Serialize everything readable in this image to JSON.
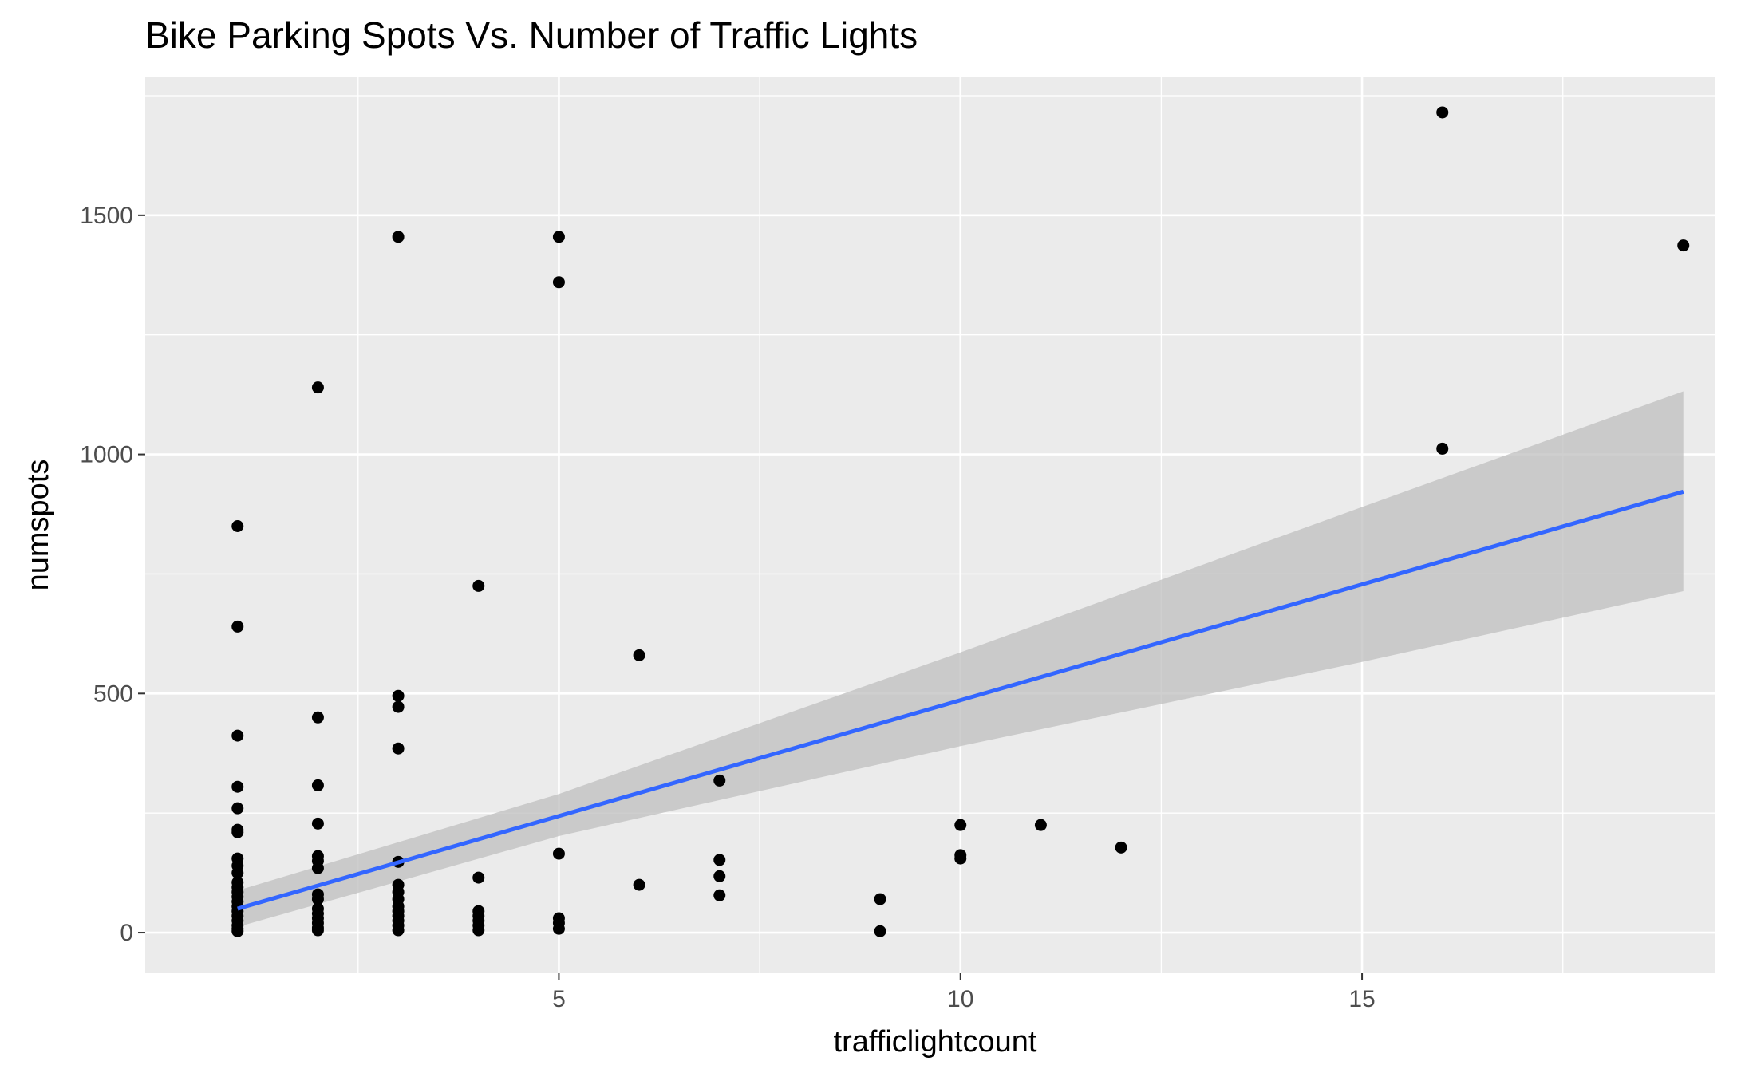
{
  "chart_data": {
    "type": "scatter",
    "title": "Bike Parking Spots Vs. Number of Traffic Lights",
    "xlabel": "trafficlightcount",
    "ylabel": "numspots",
    "xlim": [
      -0.15,
      19.4
    ],
    "ylim": [
      -85,
      1790
    ],
    "x_ticks": [
      5,
      10,
      15
    ],
    "x_tick_labels": [
      "5",
      "10",
      "15"
    ],
    "x_minor": [
      2.5,
      7.5,
      12.5,
      17.5
    ],
    "y_ticks": [
      0,
      500,
      1000,
      1500
    ],
    "y_tick_labels": [
      "0",
      "500",
      "1000",
      "1500"
    ],
    "y_minor": [
      250,
      750,
      1250,
      1750
    ],
    "grid": true,
    "background_color": "#ebebeb",
    "point_color": "#000000",
    "line_color": "#3366ff",
    "ribbon_color": "#bfbfbf",
    "points": [
      {
        "x": 1,
        "y": 850
      },
      {
        "x": 1,
        "y": 640
      },
      {
        "x": 1,
        "y": 412
      },
      {
        "x": 1,
        "y": 305
      },
      {
        "x": 1,
        "y": 260
      },
      {
        "x": 1,
        "y": 215
      },
      {
        "x": 1,
        "y": 210
      },
      {
        "x": 1,
        "y": 155
      },
      {
        "x": 1,
        "y": 140
      },
      {
        "x": 1,
        "y": 125
      },
      {
        "x": 1,
        "y": 105
      },
      {
        "x": 1,
        "y": 95
      },
      {
        "x": 1,
        "y": 85
      },
      {
        "x": 1,
        "y": 75
      },
      {
        "x": 1,
        "y": 65
      },
      {
        "x": 1,
        "y": 55
      },
      {
        "x": 1,
        "y": 45
      },
      {
        "x": 1,
        "y": 35
      },
      {
        "x": 1,
        "y": 25
      },
      {
        "x": 1,
        "y": 15
      },
      {
        "x": 1,
        "y": 8
      },
      {
        "x": 1,
        "y": 3
      },
      {
        "x": 2,
        "y": 1140
      },
      {
        "x": 2,
        "y": 450
      },
      {
        "x": 2,
        "y": 308
      },
      {
        "x": 2,
        "y": 228
      },
      {
        "x": 2,
        "y": 160
      },
      {
        "x": 2,
        "y": 150
      },
      {
        "x": 2,
        "y": 135
      },
      {
        "x": 2,
        "y": 80
      },
      {
        "x": 2,
        "y": 70
      },
      {
        "x": 2,
        "y": 50
      },
      {
        "x": 2,
        "y": 40
      },
      {
        "x": 2,
        "y": 30
      },
      {
        "x": 2,
        "y": 20
      },
      {
        "x": 2,
        "y": 10
      },
      {
        "x": 2,
        "y": 5
      },
      {
        "x": 3,
        "y": 1455
      },
      {
        "x": 3,
        "y": 495
      },
      {
        "x": 3,
        "y": 472
      },
      {
        "x": 3,
        "y": 385
      },
      {
        "x": 3,
        "y": 148
      },
      {
        "x": 3,
        "y": 100
      },
      {
        "x": 3,
        "y": 85
      },
      {
        "x": 3,
        "y": 70
      },
      {
        "x": 3,
        "y": 55
      },
      {
        "x": 3,
        "y": 45
      },
      {
        "x": 3,
        "y": 35
      },
      {
        "x": 3,
        "y": 25
      },
      {
        "x": 3,
        "y": 15
      },
      {
        "x": 3,
        "y": 5
      },
      {
        "x": 4,
        "y": 725
      },
      {
        "x": 4,
        "y": 115
      },
      {
        "x": 4,
        "y": 45
      },
      {
        "x": 4,
        "y": 35
      },
      {
        "x": 4,
        "y": 25
      },
      {
        "x": 4,
        "y": 15
      },
      {
        "x": 4,
        "y": 5
      },
      {
        "x": 5,
        "y": 1455
      },
      {
        "x": 5,
        "y": 1360
      },
      {
        "x": 5,
        "y": 165
      },
      {
        "x": 5,
        "y": 30
      },
      {
        "x": 5,
        "y": 20
      },
      {
        "x": 5,
        "y": 8
      },
      {
        "x": 6,
        "y": 580
      },
      {
        "x": 6,
        "y": 100
      },
      {
        "x": 7,
        "y": 318
      },
      {
        "x": 7,
        "y": 152
      },
      {
        "x": 7,
        "y": 118
      },
      {
        "x": 7,
        "y": 78
      },
      {
        "x": 9,
        "y": 70
      },
      {
        "x": 9,
        "y": 3
      },
      {
        "x": 10,
        "y": 225
      },
      {
        "x": 10,
        "y": 162
      },
      {
        "x": 10,
        "y": 155
      },
      {
        "x": 11,
        "y": 225
      },
      {
        "x": 12,
        "y": 178
      },
      {
        "x": 16,
        "y": 1715
      },
      {
        "x": 16,
        "y": 1012
      },
      {
        "x": 19,
        "y": 1437
      }
    ],
    "trend_line": {
      "x": [
        1,
        19
      ],
      "y": [
        50,
        922
      ]
    },
    "confidence_band": {
      "x": [
        1,
        5,
        10,
        15,
        19
      ],
      "lower": [
        12,
        202,
        390,
        566,
        714
      ],
      "upper": [
        88,
        290,
        586,
        890,
        1132
      ]
    }
  }
}
